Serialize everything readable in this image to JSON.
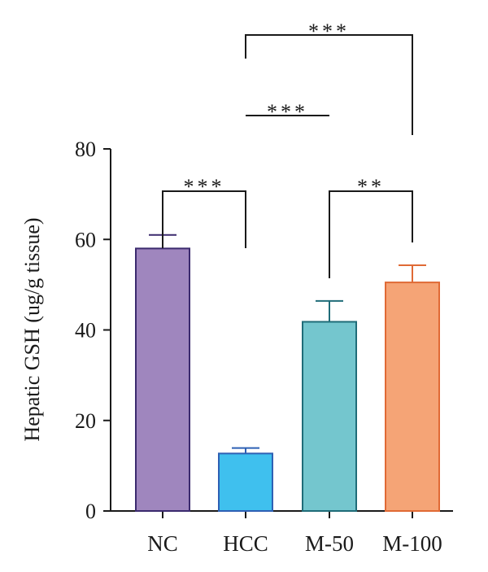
{
  "chart_data": {
    "type": "bar",
    "categories": [
      "NC",
      "HCC",
      "M-50",
      "M-100"
    ],
    "values": [
      58,
      12.7,
      41.8,
      50.5
    ],
    "errors": [
      3.0,
      1.2,
      4.6,
      3.8
    ],
    "ylabel": "Hepatic GSH (ug/g tissue)",
    "xlabel": "",
    "ylim": [
      0,
      80
    ],
    "yticks": [
      0,
      20,
      40,
      60,
      80
    ],
    "colors": {
      "fills": [
        "#9f86be",
        "#3fc0ee",
        "#74c6ce",
        "#f5a476"
      ],
      "strokes": [
        "#3b2a6e",
        "#2e60b4",
        "#1f6c78",
        "#e06a35"
      ],
      "axis": "#1a1a1a"
    },
    "significance": [
      {
        "from": "NC",
        "to": "HCC",
        "label": "***"
      },
      {
        "from": "HCC",
        "to": "M-50",
        "label": "***"
      },
      {
        "from": "HCC",
        "to": "M-100",
        "label": "***"
      },
      {
        "from": "M-50",
        "to": "M-100",
        "label": "**"
      }
    ]
  }
}
